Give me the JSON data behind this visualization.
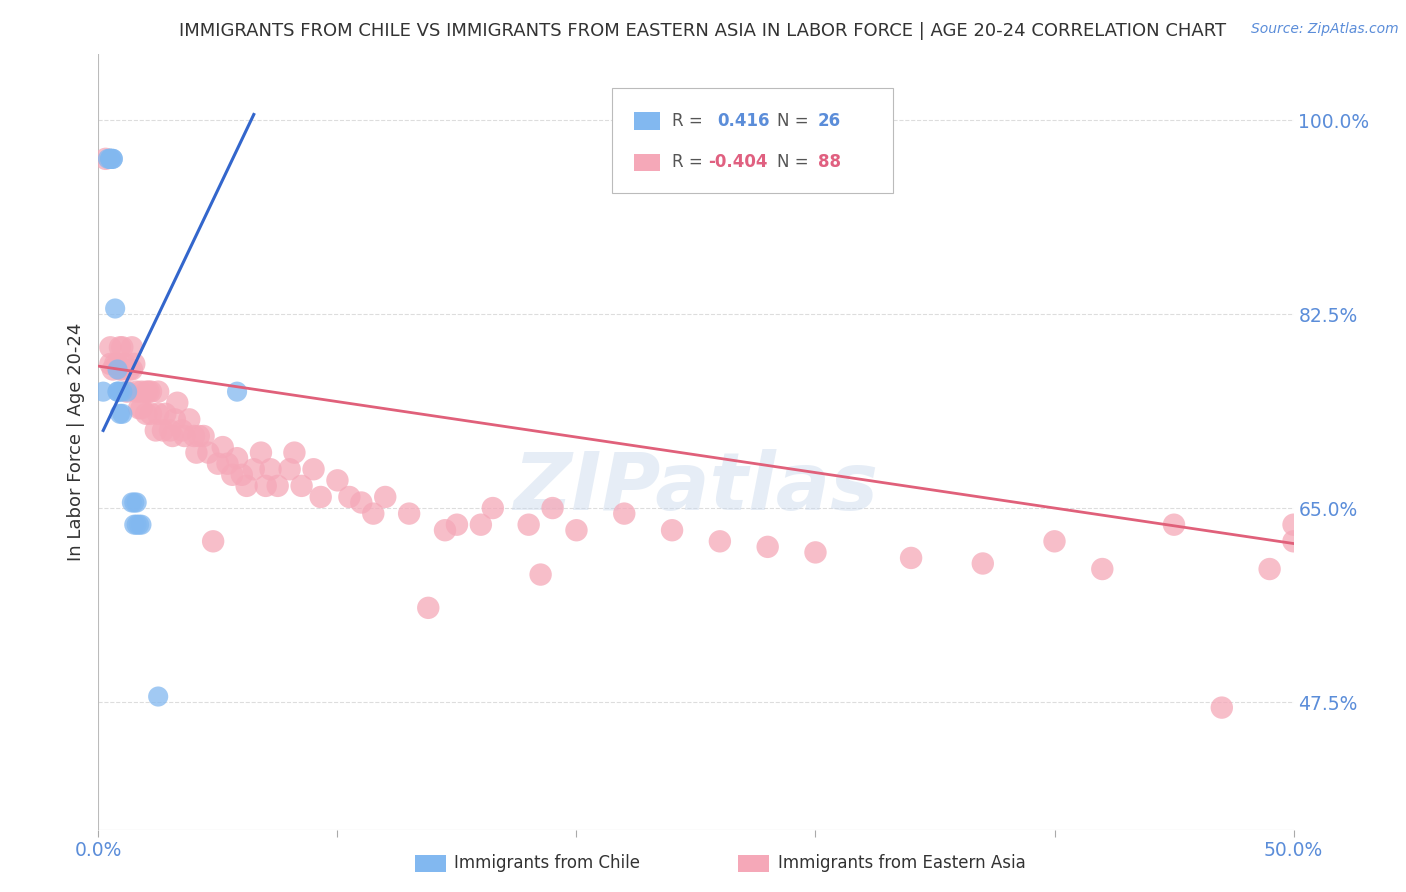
{
  "title": "IMMIGRANTS FROM CHILE VS IMMIGRANTS FROM EASTERN ASIA IN LABOR FORCE | AGE 20-24 CORRELATION CHART",
  "source": "Source: ZipAtlas.com",
  "ylabel": "In Labor Force | Age 20-24",
  "ytick_labels": [
    "100.0%",
    "82.5%",
    "65.0%",
    "47.5%"
  ],
  "ytick_values": [
    1.0,
    0.825,
    0.65,
    0.475
  ],
  "xmin": 0.0,
  "xmax": 0.5,
  "ymin": 0.36,
  "ymax": 1.06,
  "chile_color": "#82b8f0",
  "eastern_asia_color": "#f5a8b8",
  "blue_trend_x": [
    0.002,
    0.065
  ],
  "blue_trend_y": [
    0.72,
    1.005
  ],
  "pink_trend_x": [
    0.0,
    0.5
  ],
  "pink_trend_y": [
    0.778,
    0.618
  ],
  "chile_points": [
    [
      0.002,
      0.755
    ],
    [
      0.004,
      0.965
    ],
    [
      0.005,
      0.965
    ],
    [
      0.005,
      0.965
    ],
    [
      0.005,
      0.965
    ],
    [
      0.005,
      0.965
    ],
    [
      0.006,
      0.965
    ],
    [
      0.006,
      0.965
    ],
    [
      0.007,
      0.83
    ],
    [
      0.008,
      0.755
    ],
    [
      0.008,
      0.775
    ],
    [
      0.008,
      0.755
    ],
    [
      0.009,
      0.755
    ],
    [
      0.009,
      0.735
    ],
    [
      0.01,
      0.755
    ],
    [
      0.01,
      0.735
    ],
    [
      0.012,
      0.755
    ],
    [
      0.014,
      0.655
    ],
    [
      0.015,
      0.635
    ],
    [
      0.015,
      0.655
    ],
    [
      0.016,
      0.635
    ],
    [
      0.016,
      0.655
    ],
    [
      0.017,
      0.635
    ],
    [
      0.018,
      0.635
    ],
    [
      0.025,
      0.48
    ],
    [
      0.058,
      0.755
    ]
  ],
  "eastern_asia_points": [
    [
      0.003,
      0.965
    ],
    [
      0.005,
      0.78
    ],
    [
      0.005,
      0.795
    ],
    [
      0.006,
      0.775
    ],
    [
      0.007,
      0.78
    ],
    [
      0.008,
      0.78
    ],
    [
      0.009,
      0.775
    ],
    [
      0.009,
      0.795
    ],
    [
      0.01,
      0.775
    ],
    [
      0.01,
      0.795
    ],
    [
      0.011,
      0.78
    ],
    [
      0.012,
      0.755
    ],
    [
      0.013,
      0.775
    ],
    [
      0.014,
      0.775
    ],
    [
      0.014,
      0.795
    ],
    [
      0.015,
      0.78
    ],
    [
      0.016,
      0.755
    ],
    [
      0.017,
      0.74
    ],
    [
      0.018,
      0.755
    ],
    [
      0.018,
      0.74
    ],
    [
      0.02,
      0.755
    ],
    [
      0.02,
      0.735
    ],
    [
      0.021,
      0.755
    ],
    [
      0.022,
      0.735
    ],
    [
      0.022,
      0.755
    ],
    [
      0.024,
      0.72
    ],
    [
      0.025,
      0.735
    ],
    [
      0.025,
      0.755
    ],
    [
      0.027,
      0.72
    ],
    [
      0.028,
      0.735
    ],
    [
      0.03,
      0.72
    ],
    [
      0.031,
      0.715
    ],
    [
      0.032,
      0.73
    ],
    [
      0.033,
      0.745
    ],
    [
      0.035,
      0.72
    ],
    [
      0.036,
      0.715
    ],
    [
      0.038,
      0.73
    ],
    [
      0.04,
      0.715
    ],
    [
      0.041,
      0.7
    ],
    [
      0.042,
      0.715
    ],
    [
      0.044,
      0.715
    ],
    [
      0.046,
      0.7
    ],
    [
      0.048,
      0.62
    ],
    [
      0.05,
      0.69
    ],
    [
      0.052,
      0.705
    ],
    [
      0.054,
      0.69
    ],
    [
      0.056,
      0.68
    ],
    [
      0.058,
      0.695
    ],
    [
      0.06,
      0.68
    ],
    [
      0.062,
      0.67
    ],
    [
      0.065,
      0.685
    ],
    [
      0.068,
      0.7
    ],
    [
      0.07,
      0.67
    ],
    [
      0.072,
      0.685
    ],
    [
      0.075,
      0.67
    ],
    [
      0.08,
      0.685
    ],
    [
      0.082,
      0.7
    ],
    [
      0.085,
      0.67
    ],
    [
      0.09,
      0.685
    ],
    [
      0.093,
      0.66
    ],
    [
      0.1,
      0.675
    ],
    [
      0.105,
      0.66
    ],
    [
      0.11,
      0.655
    ],
    [
      0.115,
      0.645
    ],
    [
      0.12,
      0.66
    ],
    [
      0.13,
      0.645
    ],
    [
      0.138,
      0.56
    ],
    [
      0.145,
      0.63
    ],
    [
      0.15,
      0.635
    ],
    [
      0.16,
      0.635
    ],
    [
      0.165,
      0.65
    ],
    [
      0.18,
      0.635
    ],
    [
      0.185,
      0.59
    ],
    [
      0.19,
      0.65
    ],
    [
      0.2,
      0.63
    ],
    [
      0.22,
      0.645
    ],
    [
      0.24,
      0.63
    ],
    [
      0.26,
      0.62
    ],
    [
      0.28,
      0.615
    ],
    [
      0.3,
      0.61
    ],
    [
      0.34,
      0.605
    ],
    [
      0.37,
      0.6
    ],
    [
      0.4,
      0.62
    ],
    [
      0.42,
      0.595
    ],
    [
      0.45,
      0.635
    ],
    [
      0.47,
      0.47
    ],
    [
      0.49,
      0.595
    ],
    [
      0.5,
      0.62
    ],
    [
      0.5,
      0.635
    ]
  ],
  "background_color": "#ffffff",
  "grid_color": "#dddddd",
  "title_color": "#333333",
  "label_color": "#5b8dd9",
  "watermark_text": "ZIPatlas",
  "watermark_color": "#c8d8ec",
  "watermark_alpha": 0.45
}
